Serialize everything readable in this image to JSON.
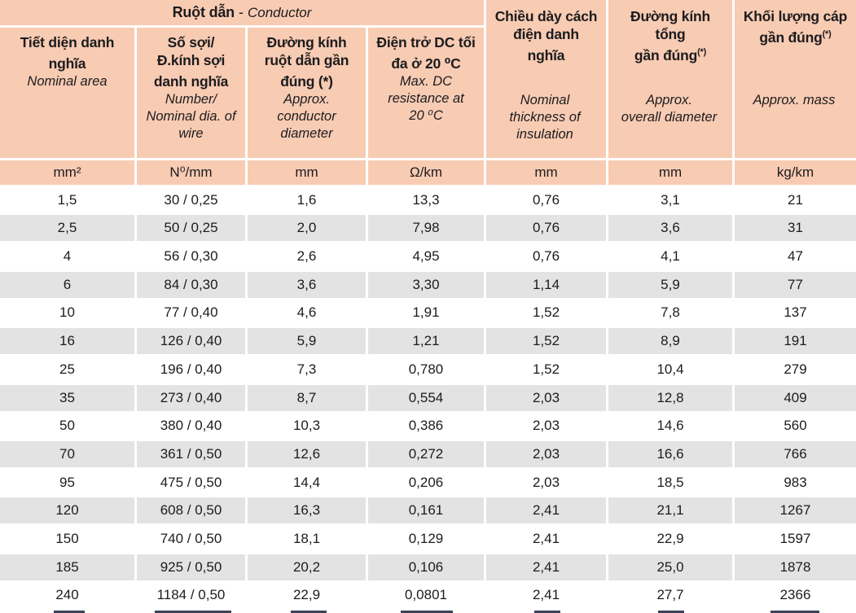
{
  "table": {
    "group_header": {
      "vi": "Ruột dẫn",
      "separator": "-",
      "en": "Conductor"
    },
    "columns": [
      {
        "vi": "Tiết diện danh\nnghĩa",
        "vi_sup": "",
        "en": "Nominal area"
      },
      {
        "vi": "Số sợi/\nĐ.kính sợi\ndanh nghĩa",
        "vi_sup": "",
        "en": "Number/\nNominal dia. of\nwire"
      },
      {
        "vi": "Đường kính\nruột dẫn gần\nđúng (*)",
        "vi_sup": "",
        "en": "Approx.\nconductor\ndiameter"
      },
      {
        "vi": "Điện trở DC tối\nđa ở 20 ⁰C",
        "vi_sup": "",
        "en": "Max. DC\nresistance at\n20 ⁰C"
      },
      {
        "vi": "Chiều dày cách\nđiện danh\nnghĩa",
        "vi_sup": "",
        "en": "Nominal\nthickness of\ninsulation"
      },
      {
        "vi": "Đường kính\ntổng\ngần đúng",
        "vi_sup": "(*)",
        "en": "Approx.\noverall diameter"
      },
      {
        "vi": "Khối lượng cáp\ngần đúng",
        "vi_sup": "(*)",
        "en": "Approx. mass"
      }
    ],
    "units": [
      "mm²",
      "N⁰/mm",
      "mm",
      "Ω/km",
      "mm",
      "mm",
      "kg/km"
    ],
    "rows": [
      [
        "1,5",
        "30 / 0,25",
        "1,6",
        "13,3",
        "0,76",
        "3,1",
        "21"
      ],
      [
        "2,5",
        "50 / 0,25",
        "2,0",
        "7,98",
        "0,76",
        "3,6",
        "31"
      ],
      [
        "4",
        "56 / 0,30",
        "2,6",
        "4,95",
        "0,76",
        "4,1",
        "47"
      ],
      [
        "6",
        "84 / 0,30",
        "3,6",
        "3,30",
        "1,14",
        "5,9",
        "77"
      ],
      [
        "10",
        "77 / 0,40",
        "4,6",
        "1,91",
        "1,52",
        "7,8",
        "137"
      ],
      [
        "16",
        "126 / 0,40",
        "5,9",
        "1,21",
        "1,52",
        "8,9",
        "191"
      ],
      [
        "25",
        "196 / 0,40",
        "7,3",
        "0,780",
        "1,52",
        "10,4",
        "279"
      ],
      [
        "35",
        "273 / 0,40",
        "8,7",
        "0,554",
        "2,03",
        "12,8",
        "409"
      ],
      [
        "50",
        "380 / 0,40",
        "10,3",
        "0,386",
        "2,03",
        "14,6",
        "560"
      ],
      [
        "70",
        "361 / 0,50",
        "12,6",
        "0,272",
        "2,03",
        "16,6",
        "766"
      ],
      [
        "95",
        "475 / 0,50",
        "14,4",
        "0,206",
        "2,03",
        "18,5",
        "983"
      ],
      [
        "120",
        "608 / 0,50",
        "16,3",
        "0,161",
        "2,41",
        "21,1",
        "1267"
      ],
      [
        "150",
        "740 / 0,50",
        "18,1",
        "0,129",
        "2,41",
        "22,9",
        "1597"
      ],
      [
        "185",
        "925 / 0,50",
        "20,2",
        "0,106",
        "2,41",
        "25,0",
        "1878"
      ],
      [
        "240",
        "1184 / 0,50",
        "22,9",
        "0,0801",
        "2,41",
        "27,7",
        "2366"
      ]
    ],
    "colors": {
      "header_bg": "#f8cbb3",
      "row_alt_bg": "#e3e3e4",
      "text": "#1c1c1e"
    }
  }
}
